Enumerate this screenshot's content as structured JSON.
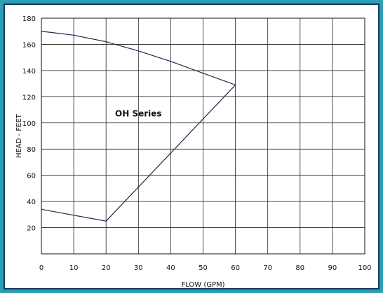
{
  "chart_data": {
    "type": "area",
    "xlabel": "FLOW (GPM)",
    "ylabel": "HEAD - FEET",
    "xlim": [
      0,
      100
    ],
    "ylim": [
      0,
      180
    ],
    "x_ticks": [
      0,
      10,
      20,
      30,
      40,
      50,
      60,
      70,
      80,
      90,
      100
    ],
    "y_ticks": [
      20,
      40,
      60,
      80,
      100,
      120,
      140,
      160,
      180
    ],
    "grid": true,
    "series": [
      {
        "name": "OH Series",
        "upper_boundary": [
          {
            "x": 0,
            "y": 170
          },
          {
            "x": 10,
            "y": 167
          },
          {
            "x": 20,
            "y": 162
          },
          {
            "x": 30,
            "y": 155
          },
          {
            "x": 40,
            "y": 147
          },
          {
            "x": 50,
            "y": 138
          },
          {
            "x": 60,
            "y": 129
          }
        ],
        "lower_boundary": [
          {
            "x": 0,
            "y": 34
          },
          {
            "x": 20,
            "y": 25
          },
          {
            "x": 60,
            "y": 129
          }
        ]
      }
    ]
  }
}
